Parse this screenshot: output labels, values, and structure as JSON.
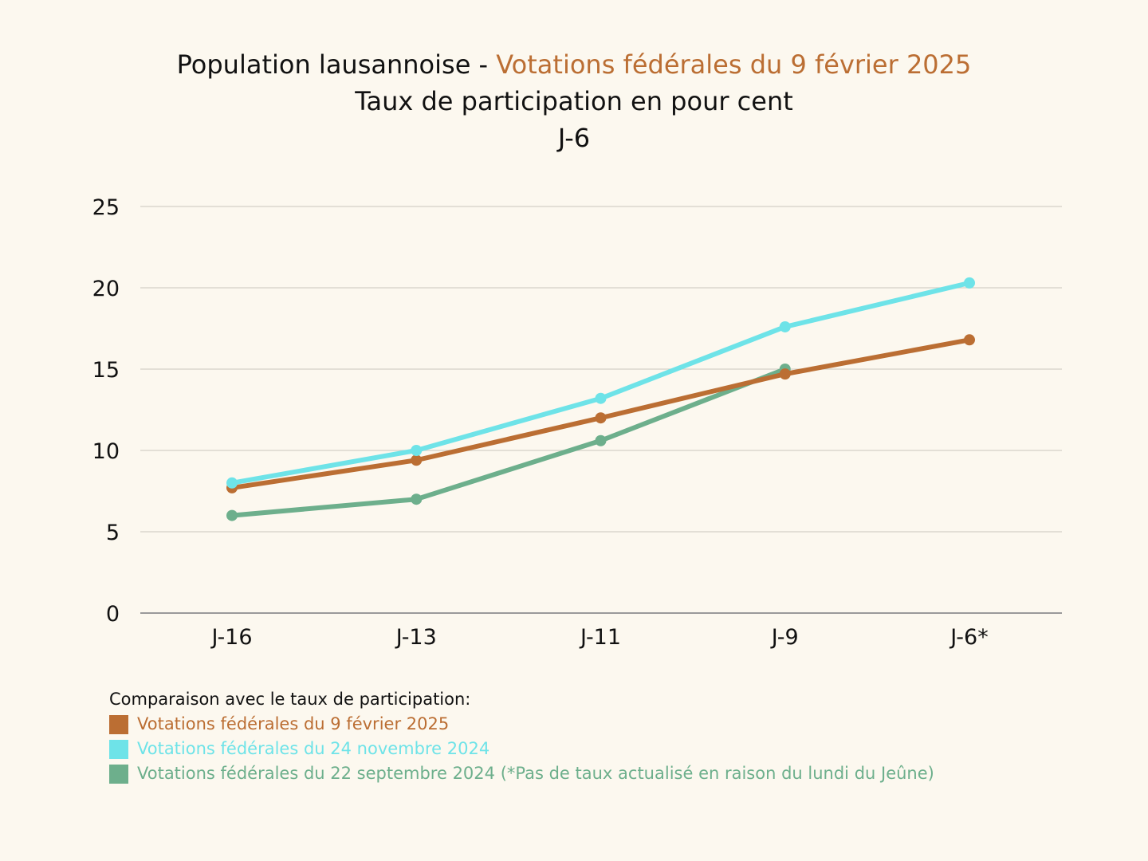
{
  "header": {
    "title_part1": "Population lausannoise - ",
    "title_part2": "Votations fédérales du 9 février 2025",
    "subtitle": "Taux de participation en pour cent",
    "subtitle2": "J-6"
  },
  "chart_data": {
    "type": "line",
    "categories": [
      "J-16",
      "J-13",
      "J-11",
      "J-9",
      "J-6*"
    ],
    "ylim": [
      0,
      25
    ],
    "yticks": [
      0,
      5,
      10,
      15,
      20,
      25
    ],
    "grid": true,
    "legend_position": "bottom-left",
    "series": [
      {
        "name": "Votations fédérales du 9 février 2025",
        "color": "#bb6e33",
        "values": [
          7.7,
          9.4,
          12.0,
          14.7,
          16.8
        ]
      },
      {
        "name": "Votations fédérales du 24 novembre 2024",
        "color": "#6ee3e8",
        "values": [
          8.0,
          10.0,
          13.2,
          17.6,
          20.3
        ]
      },
      {
        "name": "Votations fédérales du 22 septembre 2024 (*Pas de taux actualisé en raison du lundi du Jeûne)",
        "color": "#6daf8c",
        "values": [
          6.0,
          7.0,
          10.6,
          15.0,
          null
        ]
      }
    ]
  },
  "legend": {
    "heading": "Comparaison avec le taux de participation:"
  }
}
